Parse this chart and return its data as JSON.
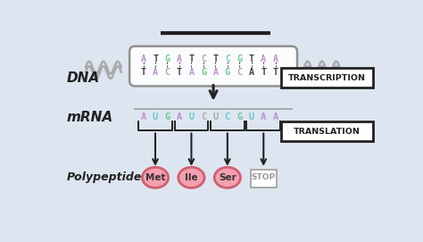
{
  "bg_color": "#dde6f0",
  "dna_top": "ATGATCTCGTAA",
  "dna_bottom": "TACTAGAGCATT",
  "mrna_display": "AUGAUCUCGUAA",
  "dna_top_colors": [
    "#c090d0",
    "#444444",
    "#70c890",
    "#c090d0",
    "#444444",
    "#aaaaaa",
    "#444444",
    "#70c8c8",
    "#70c890",
    "#444444",
    "#c090d0",
    "#c090d0"
  ],
  "dna_bot_colors": [
    "#444444",
    "#c090d0",
    "#aaaaaa",
    "#444444",
    "#c090d0",
    "#70c890",
    "#c090d0",
    "#70c890",
    "#aaaaaa",
    "#444444",
    "#444444",
    "#444444"
  ],
  "mrna_colors": [
    "#c090d0",
    "#70c8c8",
    "#70c890",
    "#c090d0",
    "#70c8c8",
    "#aaaaaa",
    "#aaaaaa",
    "#70c8c8",
    "#70c890",
    "#70c8c8",
    "#c090d0",
    "#c090d0"
  ],
  "amino_acids": [
    "Met",
    "Ile",
    "Ser",
    "STOP"
  ],
  "amino_fill": [
    "#f4a0b0",
    "#f4a0b0",
    "#f4a0b0",
    "#ffffff"
  ],
  "amino_edge": [
    "#d06070",
    "#d06070",
    "#d06070",
    "#aaaaaa"
  ],
  "amino_text_colors": [
    "#333333",
    "#333333",
    "#333333",
    "#999999"
  ],
  "label_dna": "DNA",
  "label_mrna": "mRNA",
  "label_poly": "Polypeptide",
  "label_transcription": "TRANSCRIPTION",
  "label_translation": "TRANSLATION",
  "squiggle_color": "#aaaaaa",
  "box_edge": "#888888",
  "arrow_color": "#222222",
  "dash_color": "#555555",
  "black_box_edge": "#222222"
}
